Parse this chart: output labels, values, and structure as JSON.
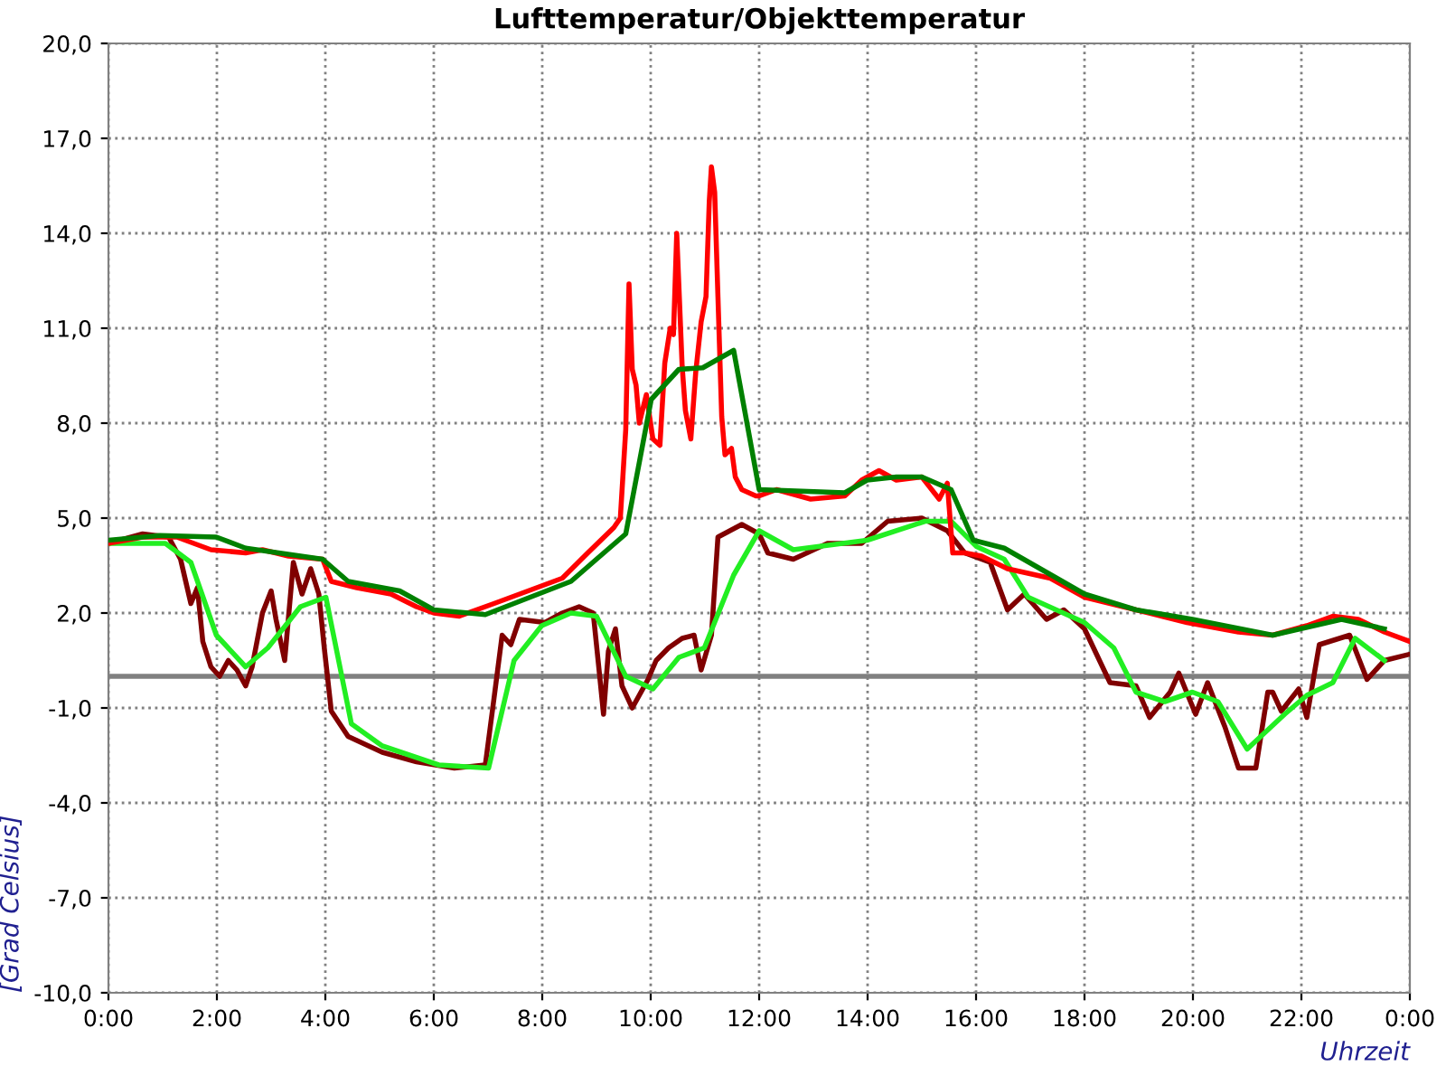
{
  "chart_data": {
    "type": "line",
    "title": "Lufttemperatur/Objekttemperatur",
    "xlabel": "Uhrzeit",
    "ylabel": "[Grad Celsius]",
    "xlim": [
      0,
      24
    ],
    "xticks": [
      {
        "value": 0,
        "label": "0:00"
      },
      {
        "value": 2,
        "label": "2:00"
      },
      {
        "value": 4,
        "label": "4:00"
      },
      {
        "value": 6,
        "label": "6:00"
      },
      {
        "value": 8,
        "label": "8:00"
      },
      {
        "value": 10,
        "label": "10:00"
      },
      {
        "value": 12,
        "label": "12:00"
      },
      {
        "value": 14,
        "label": "14:00"
      },
      {
        "value": 16,
        "label": "16:00"
      },
      {
        "value": 18,
        "label": "18:00"
      },
      {
        "value": 20,
        "label": "20:00"
      },
      {
        "value": 22,
        "label": "22:00"
      },
      {
        "value": 24,
        "label": "0:00"
      }
    ],
    "ylim": [
      -10,
      20
    ],
    "yticks": [
      {
        "value": -10,
        "label": "-10,0"
      },
      {
        "value": -7,
        "label": "-7,0"
      },
      {
        "value": -4,
        "label": "-4,0"
      },
      {
        "value": -1,
        "label": "-1,0"
      },
      {
        "value": 2,
        "label": "2,0"
      },
      {
        "value": 5,
        "label": "5,0"
      },
      {
        "value": 8,
        "label": "8,0"
      },
      {
        "value": 11,
        "label": "11,0"
      },
      {
        "value": 14,
        "label": "14,0"
      },
      {
        "value": 17,
        "label": "17,0"
      },
      {
        "value": 20,
        "label": "20,0"
      }
    ],
    "grid": true,
    "marker": "none",
    "line_style": "solid",
    "ref_lines": [
      {
        "axis": "y",
        "value": 0,
        "color": "#808080"
      }
    ],
    "series": [
      {
        "color": "#800000",
        "x": [
          0,
          0.63,
          1.11,
          1.33,
          1.52,
          1.64,
          1.74,
          1.89,
          2.05,
          2.21,
          2.37,
          2.53,
          2.65,
          2.84,
          3.0,
          3.09,
          3.25,
          3.41,
          3.57,
          3.73,
          3.88,
          3.98,
          4.11,
          4.42,
          5.05,
          5.68,
          6.38,
          6.95,
          7.11,
          7.26,
          7.42,
          7.58,
          8.05,
          8.37,
          8.68,
          8.94,
          9.03,
          9.13,
          9.22,
          9.35,
          9.47,
          9.66,
          9.95,
          10.1,
          10.33,
          10.58,
          10.8,
          10.93,
          11.12,
          11.24,
          11.68,
          12.0,
          12.16,
          12.63,
          13.26,
          13.89,
          14.37,
          15.0,
          15.47,
          15.79,
          16.26,
          16.58,
          16.89,
          17.3,
          17.62,
          18.0,
          18.47,
          18.95,
          19.2,
          19.58,
          19.74,
          20.05,
          20.27,
          20.59,
          20.84,
          21.16,
          21.38,
          21.47,
          21.63,
          21.95,
          22.1,
          22.33,
          22.89,
          23.21,
          23.53,
          24
        ],
        "values": [
          4.2,
          4.5,
          4.4,
          3.7,
          2.3,
          2.8,
          1.1,
          0.3,
          0.0,
          0.5,
          0.2,
          -0.3,
          0.3,
          2.0,
          2.7,
          1.8,
          0.5,
          3.6,
          2.6,
          3.4,
          2.6,
          0.9,
          -1.1,
          -1.9,
          -2.4,
          -2.7,
          -2.9,
          -2.8,
          -0.7,
          1.3,
          1.0,
          1.8,
          1.7,
          2.0,
          2.2,
          2.0,
          0.5,
          -1.2,
          0.8,
          1.5,
          -0.3,
          -1.0,
          -0.1,
          0.5,
          0.9,
          1.2,
          1.3,
          0.2,
          1.3,
          4.4,
          4.8,
          4.5,
          3.9,
          3.7,
          4.2,
          4.2,
          4.9,
          5.0,
          4.6,
          3.9,
          3.6,
          2.1,
          2.6,
          1.8,
          2.1,
          1.5,
          -0.2,
          -0.3,
          -1.3,
          -0.5,
          0.1,
          -1.2,
          -0.2,
          -1.6,
          -2.9,
          -2.9,
          -0.5,
          -0.5,
          -1.1,
          -0.4,
          -1.3,
          1.0,
          1.3,
          -0.1,
          0.5,
          0.7
        ]
      },
      {
        "color": "#22ee22",
        "x": [
          0,
          0.47,
          1.05,
          1.52,
          1.99,
          2.53,
          2.94,
          3.54,
          4.01,
          4.48,
          5.05,
          6.09,
          7.01,
          7.48,
          7.99,
          8.53,
          9.0,
          9.54,
          10.04,
          10.52,
          10.99,
          11.53,
          12.0,
          12.63,
          13.99,
          15.06,
          15.54,
          16.01,
          16.52,
          16.96,
          18.0,
          18.54,
          18.95,
          19.48,
          19.99,
          20.46,
          21.0,
          21.69,
          22.1,
          22.58,
          22.99,
          23.53
        ],
        "values": [
          4.2,
          4.2,
          4.2,
          3.6,
          1.3,
          0.3,
          0.9,
          2.2,
          2.5,
          -1.5,
          -2.2,
          -2.8,
          -2.9,
          0.5,
          1.6,
          2.0,
          1.9,
          0.0,
          -0.4,
          0.6,
          0.9,
          3.2,
          4.6,
          4.0,
          4.3,
          4.9,
          4.9,
          4.1,
          3.7,
          2.5,
          1.7,
          0.9,
          -0.5,
          -0.8,
          -0.5,
          -0.8,
          -2.3,
          -1.2,
          -0.6,
          -0.2,
          1.2,
          0.5
        ]
      },
      {
        "color": "#ff0000",
        "x": [
          0,
          0.63,
          1.26,
          1.89,
          2.53,
          2.84,
          3.32,
          3.95,
          4.11,
          4.58,
          5.21,
          5.68,
          6.0,
          6.47,
          7.11,
          7.74,
          8.37,
          8.84,
          9.32,
          9.44,
          9.54,
          9.6,
          9.66,
          9.73,
          9.79,
          9.92,
          10.04,
          10.17,
          10.26,
          10.36,
          10.42,
          10.48,
          10.58,
          10.64,
          10.74,
          10.83,
          10.93,
          11.02,
          11.08,
          11.12,
          11.18,
          11.24,
          11.31,
          11.37,
          11.49,
          11.56,
          11.68,
          11.94,
          12.0,
          12.32,
          12.95,
          13.58,
          13.89,
          14.21,
          14.53,
          15.0,
          15.32,
          15.47,
          15.57,
          15.79,
          16.1,
          16.58,
          17.37,
          18.0,
          18.95,
          19.89,
          20.84,
          21.47,
          22.1,
          22.58,
          23.05,
          23.53,
          24
        ],
        "values": [
          4.2,
          4.4,
          4.4,
          4.0,
          3.9,
          4.0,
          3.8,
          3.7,
          3.0,
          2.8,
          2.6,
          2.2,
          2.0,
          1.9,
          2.3,
          2.7,
          3.1,
          3.9,
          4.7,
          5.0,
          7.8,
          12.4,
          9.7,
          9.2,
          8.0,
          8.9,
          7.5,
          7.3,
          9.9,
          11.0,
          10.8,
          14.0,
          9.8,
          8.4,
          7.5,
          9.6,
          11.2,
          12.0,
          15.0,
          16.1,
          15.3,
          12.0,
          8.2,
          7.0,
          7.2,
          6.3,
          5.9,
          5.7,
          5.7,
          5.9,
          5.6,
          5.7,
          6.2,
          6.5,
          6.2,
          6.3,
          5.6,
          6.1,
          3.9,
          3.9,
          3.8,
          3.4,
          3.1,
          2.5,
          2.1,
          1.7,
          1.4,
          1.3,
          1.6,
          1.9,
          1.8,
          1.4,
          1.1
        ]
      },
      {
        "color": "#008000",
        "x": [
          0,
          0.95,
          1.99,
          2.53,
          3.95,
          4.42,
          5.37,
          6.0,
          6.95,
          8.53,
          9.0,
          9.54,
          10.01,
          10.52,
          10.96,
          11.53,
          12.0,
          13.58,
          13.99,
          14.53,
          15.0,
          15.54,
          15.95,
          16.52,
          18.0,
          18.95,
          19.99,
          21.47,
          22.74,
          23.53
        ],
        "values": [
          4.3,
          4.45,
          4.4,
          4.05,
          3.7,
          3.0,
          2.7,
          2.1,
          1.95,
          3.0,
          3.7,
          4.5,
          8.75,
          9.7,
          9.75,
          10.3,
          5.9,
          5.8,
          6.2,
          6.3,
          6.3,
          5.9,
          4.3,
          4.05,
          2.6,
          2.1,
          1.8,
          1.3,
          1.8,
          1.5
        ]
      }
    ]
  }
}
